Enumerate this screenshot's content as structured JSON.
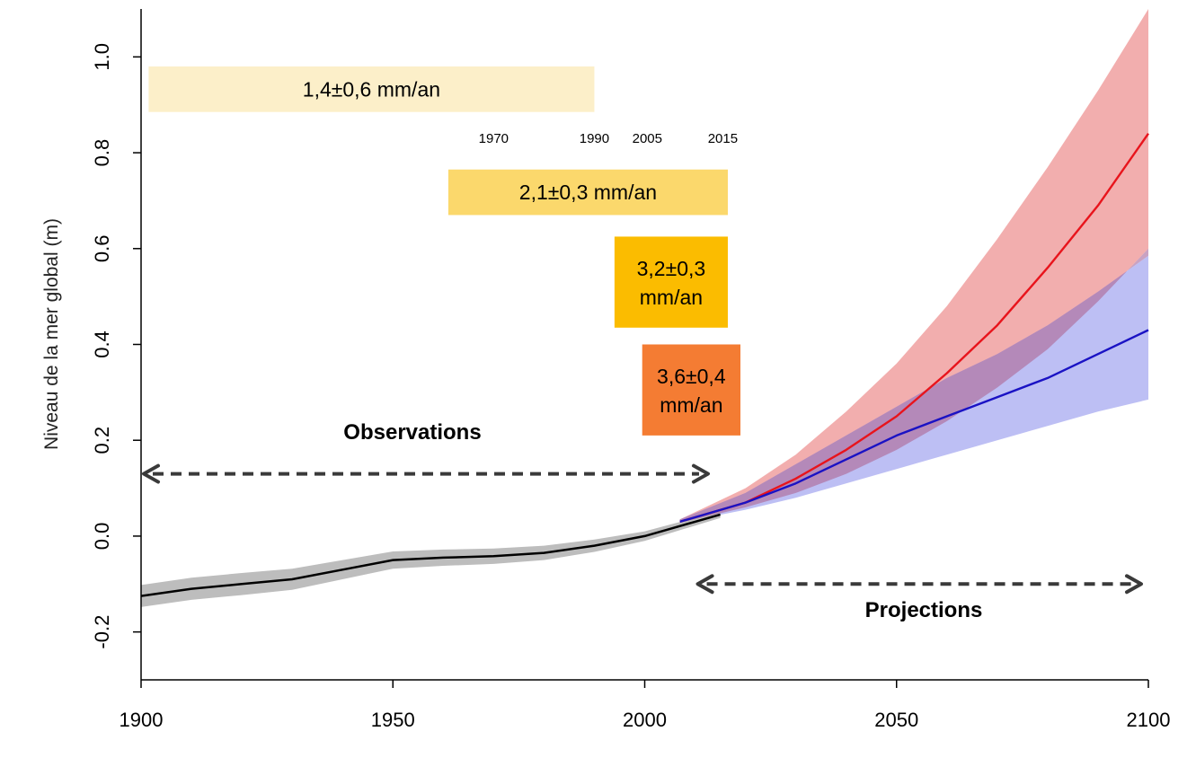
{
  "chart_data": {
    "type": "area",
    "title": "",
    "xlabel": "",
    "ylabel": "Niveau de la mer global (m)",
    "xlim": [
      1900,
      2100
    ],
    "ylim": [
      -0.3,
      1.1
    ],
    "xticks": [
      "1900",
      "1950",
      "2000",
      "2050",
      "2100"
    ],
    "yticks": [
      "-0.2",
      "0.0",
      "0.2",
      "0.4",
      "0.6",
      "0.8",
      "1.0"
    ],
    "colors": {
      "observed_line": "#000000",
      "observed_band": "#bdbdbd",
      "red_line": "#e8141c",
      "red_band": "#f0a0a0",
      "blue_line": "#1a12c4",
      "blue_band": "#a7aaf0",
      "overlap_band": "#b27aa8",
      "arrow": "#3a3a3a"
    },
    "series": [
      {
        "kind": "observed",
        "x": [
          1900,
          1910,
          1920,
          1930,
          1940,
          1950,
          1960,
          1970,
          1980,
          1990,
          2000,
          2005,
          2010,
          2015
        ],
        "values": [
          -0.125,
          -0.11,
          -0.1,
          -0.09,
          -0.07,
          -0.05,
          -0.045,
          -0.042,
          -0.035,
          -0.02,
          0.0,
          0.015,
          0.03,
          0.045
        ],
        "lower": [
          -0.148,
          -0.133,
          -0.123,
          -0.112,
          -0.09,
          -0.068,
          -0.062,
          -0.058,
          -0.05,
          -0.033,
          -0.01,
          0.006,
          0.022,
          0.038
        ],
        "upper": [
          -0.102,
          -0.087,
          -0.077,
          -0.068,
          -0.05,
          -0.032,
          -0.028,
          -0.026,
          -0.02,
          -0.007,
          0.01,
          0.024,
          0.038,
          0.052
        ]
      },
      {
        "kind": "projection-high",
        "x": [
          2007,
          2020,
          2030,
          2040,
          2050,
          2060,
          2070,
          2080,
          2090,
          2100
        ],
        "values": [
          0.03,
          0.07,
          0.12,
          0.18,
          0.25,
          0.34,
          0.44,
          0.56,
          0.69,
          0.84
        ],
        "lower": [
          0.028,
          0.06,
          0.09,
          0.13,
          0.18,
          0.24,
          0.31,
          0.39,
          0.49,
          0.6
        ],
        "upper": [
          0.035,
          0.1,
          0.17,
          0.26,
          0.36,
          0.48,
          0.62,
          0.77,
          0.93,
          1.1
        ]
      },
      {
        "kind": "projection-low",
        "x": [
          2007,
          2020,
          2030,
          2040,
          2050,
          2060,
          2070,
          2080,
          2090,
          2100
        ],
        "values": [
          0.03,
          0.07,
          0.11,
          0.16,
          0.21,
          0.25,
          0.29,
          0.33,
          0.38,
          0.43
        ],
        "lower": [
          0.028,
          0.055,
          0.08,
          0.11,
          0.14,
          0.17,
          0.2,
          0.23,
          0.26,
          0.285
        ],
        "upper": [
          0.035,
          0.09,
          0.15,
          0.21,
          0.27,
          0.33,
          0.38,
          0.44,
          0.51,
          0.585
        ]
      }
    ],
    "rate_boxes": [
      {
        "label": "1,4±0,6 mm/an",
        "x0": 1901.5,
        "x1": 1990,
        "y0": 0.885,
        "y1": 0.98,
        "color": "#fcefc9"
      },
      {
        "label": "2,1±0,3 mm/an",
        "x0": 1961,
        "x1": 2016.5,
        "y0": 0.67,
        "y1": 0.765,
        "color": "#fbd86c"
      },
      {
        "label": "3,2±0,3 mm/an",
        "label_lines": [
          "3,2±0,3",
          "mm/an"
        ],
        "x0": 1994,
        "x1": 2016.5,
        "y0": 0.435,
        "y1": 0.625,
        "color": "#fbbc00"
      },
      {
        "label": "3,6±0,4 mm/an",
        "label_lines": [
          "3,6±0,4",
          "mm/an"
        ],
        "x0": 1999.5,
        "x1": 2019,
        "y0": 0.21,
        "y1": 0.4,
        "color": "#f47c33"
      }
    ],
    "year_markers": [
      {
        "label": "1970",
        "x": 1970
      },
      {
        "label": "1990",
        "x": 1990
      },
      {
        "label": "2005",
        "x": 2000.5
      },
      {
        "label": "2015",
        "x": 2015.5
      }
    ],
    "annotations": {
      "observations": "Observations",
      "projections": "Projections"
    },
    "arrows": [
      {
        "name": "observations-arrow",
        "x0": 1900,
        "x1": 2014,
        "y": 0.13
      },
      {
        "name": "projections-arrow",
        "x0": 2010,
        "x1": 2100,
        "y": -0.1
      }
    ]
  }
}
